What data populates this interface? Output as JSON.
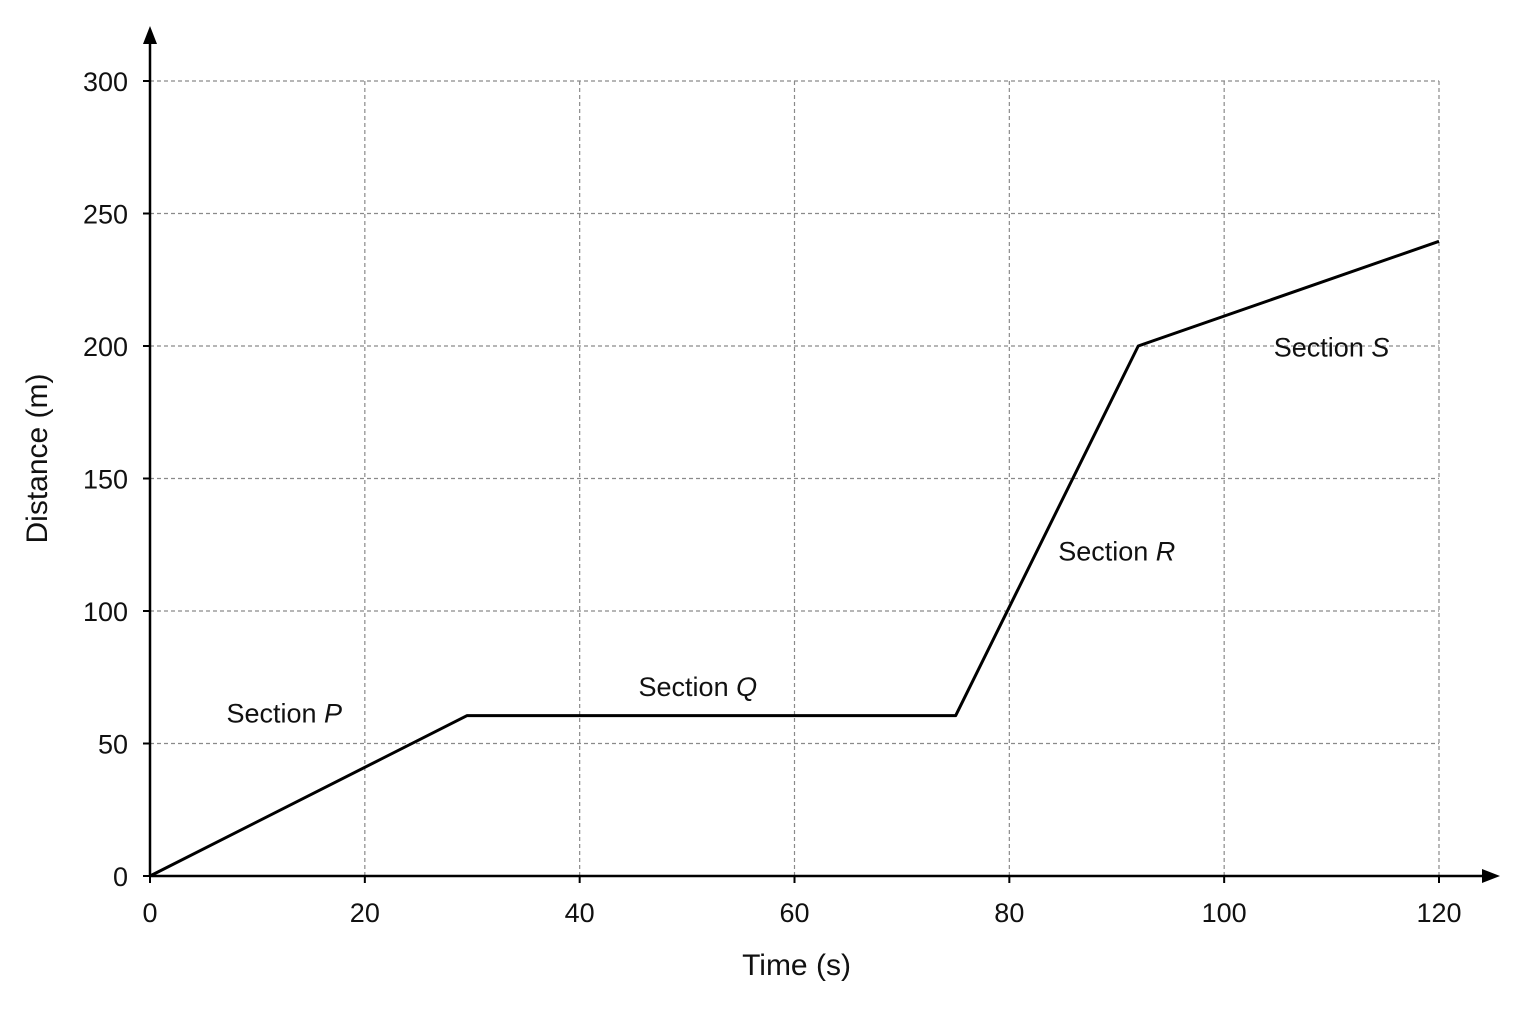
{
  "chart_data": {
    "type": "line",
    "title": "",
    "xlabel": "Time (s)",
    "ylabel": "Distance (m)",
    "xlim": [
      0,
      120
    ],
    "ylim": [
      0,
      300
    ],
    "x_ticks": [
      0,
      20,
      40,
      60,
      80,
      100,
      120
    ],
    "y_ticks": [
      0,
      50,
      100,
      150,
      200,
      250,
      300
    ],
    "grid": true,
    "series": [
      {
        "points": [
          {
            "x": 0,
            "y": 0
          },
          {
            "x": 29.5,
            "y": 60.5
          },
          {
            "x": 75,
            "y": 60.5
          },
          {
            "x": 92,
            "y": 200
          },
          {
            "x": 120,
            "y": 239.5
          }
        ]
      }
    ],
    "annotations": [
      {
        "prefix": "Section ",
        "letter": "P",
        "x": 12.5,
        "y": 58
      },
      {
        "prefix": "Section ",
        "letter": "Q",
        "x": 51,
        "y": 68
      },
      {
        "prefix": "Section ",
        "letter": "R",
        "x": 90,
        "y": 119
      },
      {
        "prefix": "Section ",
        "letter": "S",
        "x": 110,
        "y": 196
      }
    ]
  }
}
